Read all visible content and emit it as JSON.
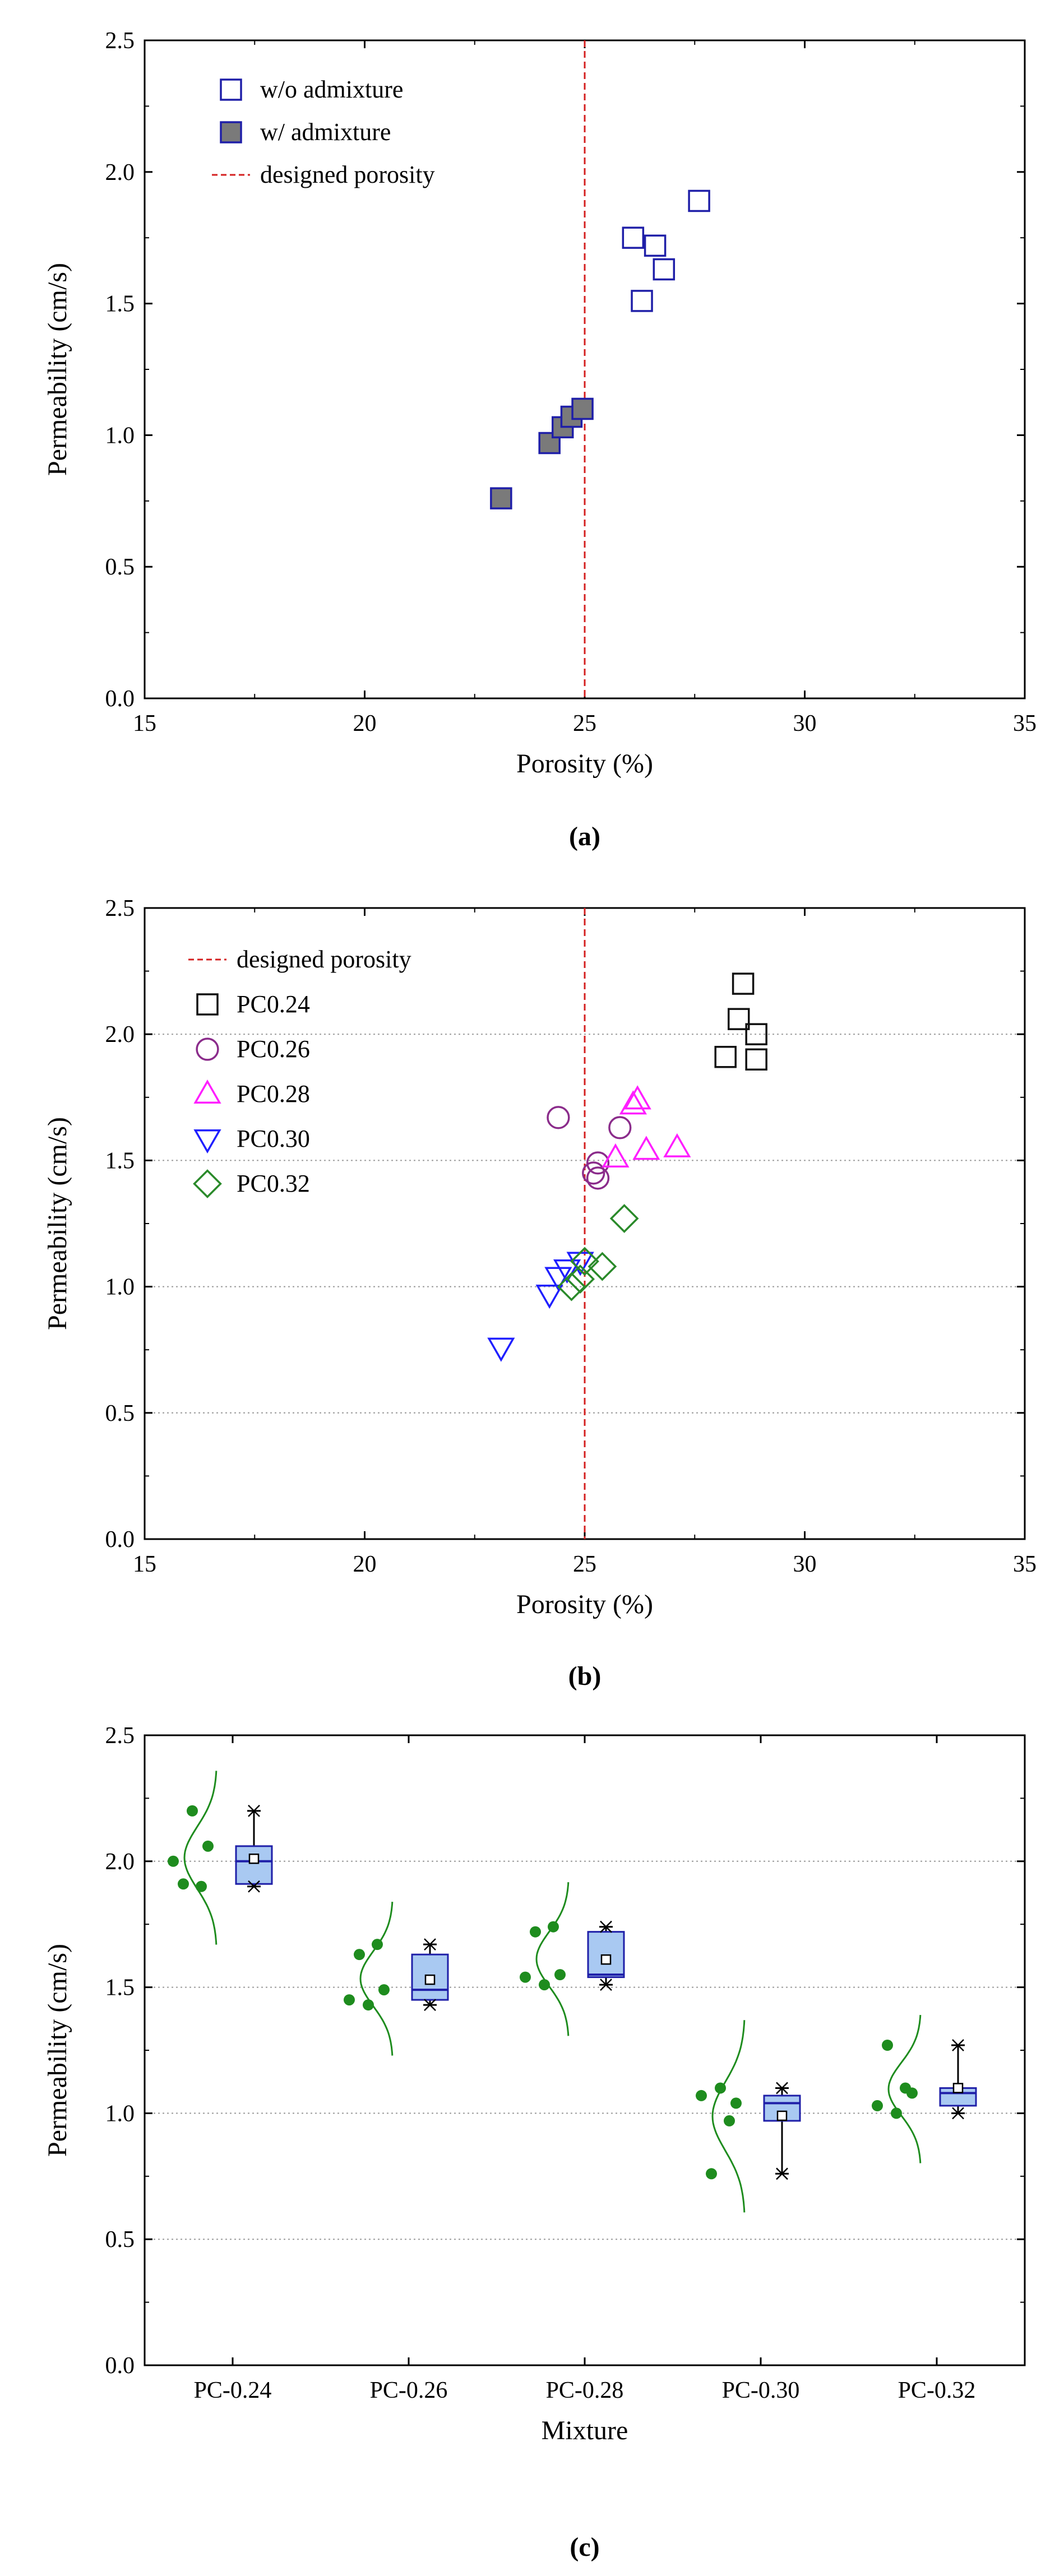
{
  "chart_data": [
    {
      "type": "scatter",
      "panel_label": "(a)",
      "xlabel": "Porosity (%)",
      "ylabel": "Permeability (cm/s)",
      "xlim": [
        15,
        35
      ],
      "ylim": [
        0.0,
        2.5
      ],
      "xticks": [
        "15",
        "20",
        "25",
        "30",
        "35"
      ],
      "yticks": [
        "0.0",
        "0.5",
        "1.0",
        "1.5",
        "2.0",
        "2.5"
      ],
      "grid": false,
      "legend_position": "top-left",
      "reference_line": {
        "name": "designed porosity",
        "x": 25,
        "color": "#d42020"
      },
      "series": [
        {
          "name": "w/o admixture",
          "marker": "square",
          "stroke": "#1f1fa8",
          "fill": "none",
          "points": [
            [
              26.1,
              1.75
            ],
            [
              26.6,
              1.72
            ],
            [
              27.6,
              1.89
            ],
            [
              26.8,
              1.63
            ],
            [
              26.3,
              1.51
            ]
          ]
        },
        {
          "name": "w/ admixture",
          "marker": "square",
          "stroke": "#1f1fa8",
          "fill": "#7a7a7a",
          "points": [
            [
              23.1,
              0.76
            ],
            [
              24.2,
              0.97
            ],
            [
              24.5,
              1.03
            ],
            [
              24.7,
              1.07
            ],
            [
              24.95,
              1.1
            ]
          ]
        }
      ]
    },
    {
      "type": "scatter",
      "panel_label": "(b)",
      "xlabel": "Porosity (%)",
      "ylabel": "Permeability (cm/s)",
      "xlim": [
        15,
        35
      ],
      "ylim": [
        0.0,
        2.5
      ],
      "xticks": [
        "15",
        "20",
        "25",
        "30",
        "35"
      ],
      "yticks": [
        "0.0",
        "0.5",
        "1.0",
        "1.5",
        "2.0",
        "2.5"
      ],
      "grid": true,
      "legend_position": "top-left",
      "reference_line": {
        "name": "designed porosity",
        "x": 25,
        "color": "#d42020"
      },
      "series": [
        {
          "name": "PC0.24",
          "marker": "square",
          "stroke": "#111111",
          "points": [
            [
              28.6,
              2.2
            ],
            [
              28.5,
              2.06
            ],
            [
              28.9,
              2.0
            ],
            [
              28.2,
              1.91
            ],
            [
              28.9,
              1.9
            ]
          ]
        },
        {
          "name": "PC0.26",
          "marker": "circle",
          "stroke": "#8b2c8b",
          "points": [
            [
              24.4,
              1.67
            ],
            [
              25.8,
              1.63
            ],
            [
              25.3,
              1.49
            ],
            [
              25.2,
              1.45
            ],
            [
              25.3,
              1.43
            ]
          ]
        },
        {
          "name": "PC0.28",
          "marker": "triangle-up",
          "stroke": "#ff1eff",
          "points": [
            [
              26.2,
              1.74
            ],
            [
              26.1,
              1.72
            ],
            [
              27.1,
              1.55
            ],
            [
              26.4,
              1.54
            ],
            [
              25.7,
              1.51
            ]
          ]
        },
        {
          "name": "PC0.30",
          "marker": "triangle-down",
          "stroke": "#1f1fff",
          "points": [
            [
              24.9,
              1.1
            ],
            [
              24.6,
              1.07
            ],
            [
              24.4,
              1.04
            ],
            [
              24.2,
              0.97
            ],
            [
              23.1,
              0.76
            ]
          ]
        },
        {
          "name": "PC0.32",
          "marker": "diamond",
          "stroke": "#2a8a2a",
          "points": [
            [
              25.9,
              1.27
            ],
            [
              25.4,
              1.08
            ],
            [
              25.0,
              1.1
            ],
            [
              24.9,
              1.03
            ],
            [
              24.7,
              1.0
            ]
          ]
        }
      ]
    },
    {
      "type": "box",
      "panel_label": "(c)",
      "xlabel": "Mixture",
      "ylabel": "Permeability (cm/s)",
      "ylim": [
        0.0,
        2.5
      ],
      "yticks": [
        "0.0",
        "0.5",
        "1.0",
        "1.5",
        "2.0",
        "2.5"
      ],
      "grid": true,
      "colors": {
        "points": "#1e8c1e",
        "box_fill": "#a9c9f2",
        "box_stroke": "#1f1fa8",
        "curve": "#1e8c1e"
      },
      "categories": [
        "PC-0.24",
        "PC-0.26",
        "PC-0.28",
        "PC-0.30",
        "PC-0.32"
      ],
      "groups": [
        {
          "category": "PC-0.24",
          "points": [
            2.0,
            1.91,
            2.2,
            1.9,
            2.06
          ],
          "q1": 1.91,
          "median": 2.0,
          "q3": 2.06,
          "mean": 2.01,
          "min": 1.9,
          "max": 2.2
        },
        {
          "category": "PC-0.26",
          "points": [
            1.45,
            1.63,
            1.43,
            1.67,
            1.49
          ],
          "q1": 1.45,
          "median": 1.49,
          "q3": 1.63,
          "mean": 1.53,
          "min": 1.43,
          "max": 1.67
        },
        {
          "category": "PC-0.28",
          "points": [
            1.54,
            1.72,
            1.51,
            1.74,
            1.55
          ],
          "q1": 1.54,
          "median": 1.55,
          "q3": 1.72,
          "mean": 1.61,
          "min": 1.51,
          "max": 1.74
        },
        {
          "category": "PC-0.30",
          "points": [
            1.07,
            0.76,
            1.1,
            0.97,
            1.04
          ],
          "q1": 0.97,
          "median": 1.04,
          "q3": 1.07,
          "mean": 0.99,
          "min": 0.76,
          "max": 1.1
        },
        {
          "category": "PC-0.32",
          "points": [
            1.03,
            1.27,
            1.0,
            1.1,
            1.08
          ],
          "q1": 1.03,
          "median": 1.08,
          "q3": 1.1,
          "mean": 1.1,
          "min": 1.0,
          "max": 1.27
        }
      ]
    }
  ]
}
